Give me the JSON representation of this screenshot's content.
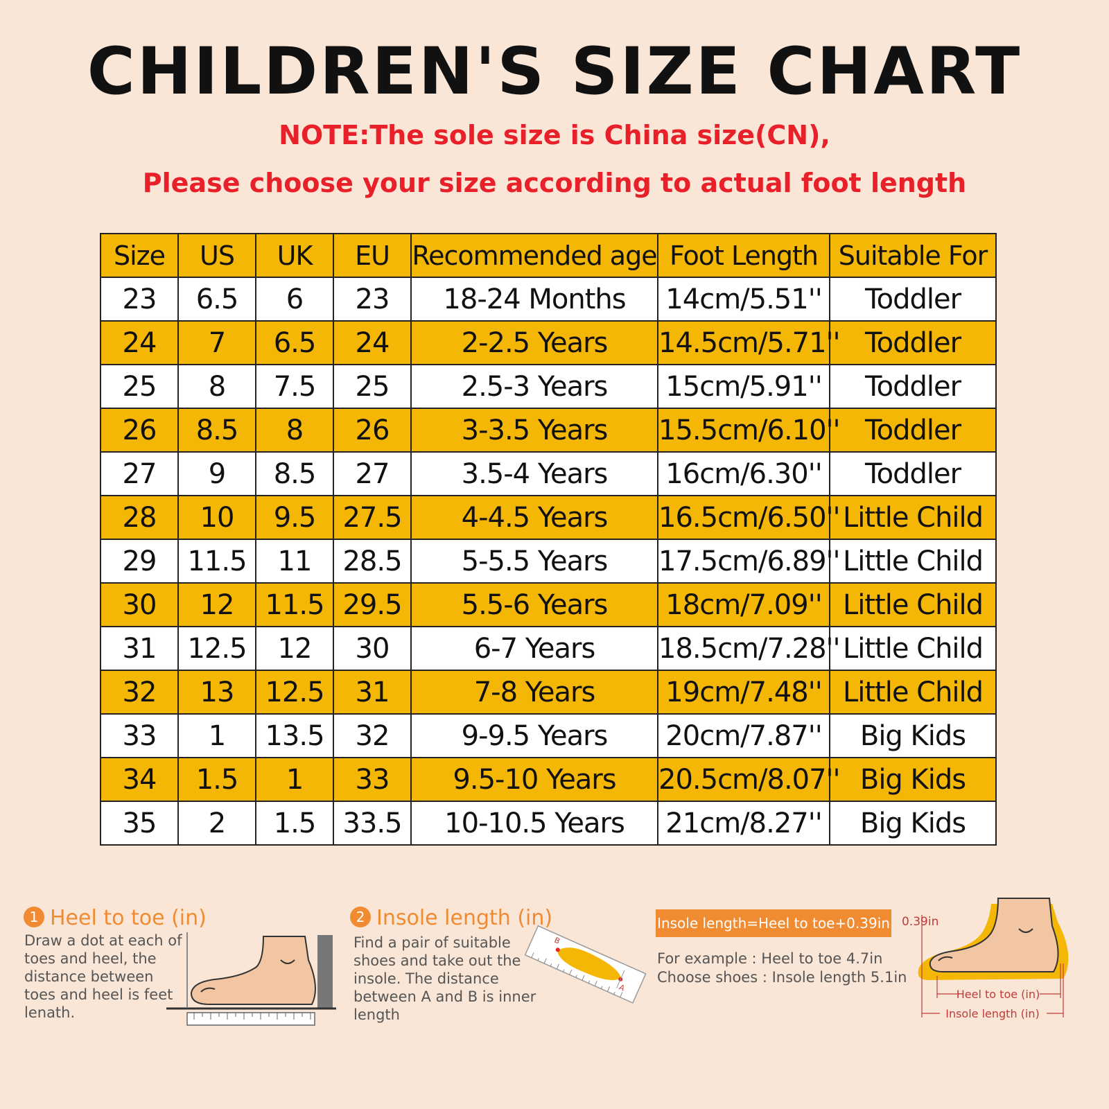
{
  "title": "CHILDREN'S SIZE CHART",
  "note_line1": "NOTE:The sole size is China size(CN),",
  "note_line2": "Please choose your size according to actual foot length",
  "table": {
    "headers": [
      "Size",
      "US",
      "UK",
      "EU",
      "Recommended age",
      "Foot Length",
      "Suitable For"
    ],
    "rows": [
      [
        "23",
        "6.5",
        "6",
        "23",
        "18-24 Months",
        "14cm/5.51''",
        "Toddler"
      ],
      [
        "24",
        "7",
        "6.5",
        "24",
        "2-2.5 Years",
        "14.5cm/5.71''",
        "Toddler"
      ],
      [
        "25",
        "8",
        "7.5",
        "25",
        "2.5-3 Years",
        "15cm/5.91''",
        "Toddler"
      ],
      [
        "26",
        "8.5",
        "8",
        "26",
        "3-3.5 Years",
        "15.5cm/6.10''",
        "Toddler"
      ],
      [
        "27",
        "9",
        "8.5",
        "27",
        "3.5-4 Years",
        "16cm/6.30''",
        "Toddler"
      ],
      [
        "28",
        "10",
        "9.5",
        "27.5",
        "4-4.5 Years",
        "16.5cm/6.50''",
        "Little Child"
      ],
      [
        "29",
        "11.5",
        "11",
        "28.5",
        "5-5.5 Years",
        "17.5cm/6.89''",
        "Little Child"
      ],
      [
        "30",
        "12",
        "11.5",
        "29.5",
        "5.5-6 Years",
        "18cm/7.09''",
        "Little Child"
      ],
      [
        "31",
        "12.5",
        "12",
        "30",
        "6-7 Years",
        "18.5cm/7.28''",
        "Little Child"
      ],
      [
        "32",
        "13",
        "12.5",
        "31",
        "7-8 Years",
        "19cm/7.48''",
        "Little Child"
      ],
      [
        "33",
        "1",
        "13.5",
        "32",
        "9-9.5 Years",
        "20cm/7.87''",
        "Big Kids"
      ],
      [
        "34",
        "1.5",
        "1",
        "33",
        "9.5-10 Years",
        "20.5cm/8.07''",
        "Big Kids"
      ],
      [
        "35",
        "2",
        "1.5",
        "33.5",
        "10-10.5 Years",
        "21cm/8.27''",
        "Big Kids"
      ]
    ]
  },
  "step1": {
    "number": "1",
    "title": "Heel to toe (in)",
    "lines": [
      "Draw a dot at each of",
      "toes and heel, the",
      "distance between",
      "toes and heel is feet",
      "lenath."
    ]
  },
  "step2": {
    "number": "2",
    "title": "Insole length (in)",
    "lines": [
      "Find a pair of suitable",
      "shoes and take out the",
      "insole. The distance",
      "between A and B is inner",
      "length"
    ],
    "label_a": "A",
    "label_b": "B"
  },
  "formula": "Insole length=Heel to toe+0.39in",
  "example_line1": "For example : Heel to toe  4.7in",
  "example_line2": "Choose shoes : Insole length 5.1in",
  "diagram": {
    "offset_label": "0.39in",
    "heel_to_toe_label": "Heel to toe (in)",
    "insole_label": "Insole length (in)"
  },
  "colors": {
    "background": "#f9e6d6",
    "header_yellow": "#f5b705",
    "note_red": "#e8202a",
    "accent_orange": "#f08b32"
  }
}
